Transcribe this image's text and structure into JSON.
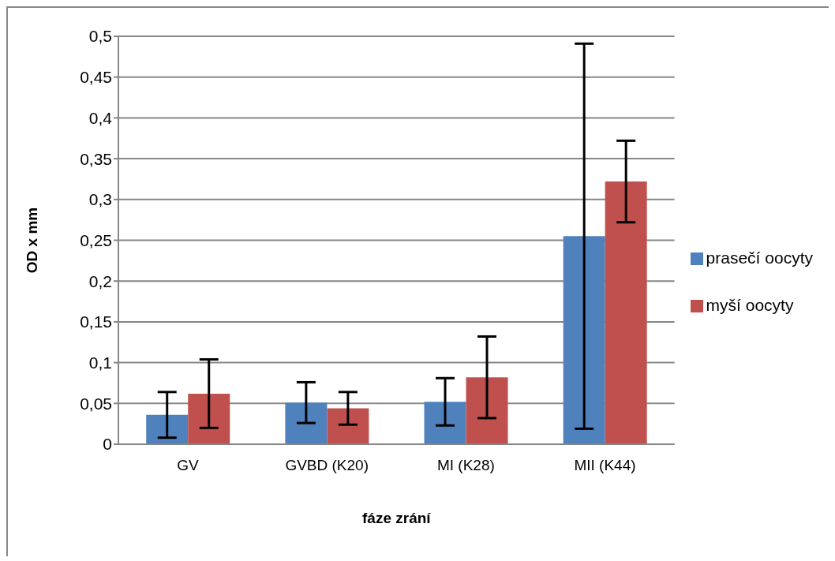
{
  "chart_data": {
    "type": "bar",
    "xlabel": "fáze zrání",
    "ylabel": "OD x mm",
    "categories": [
      "GV",
      "GVBD (K20)",
      "MI (K28)",
      "MII (K44)"
    ],
    "series": [
      {
        "name": "prasečí oocyty",
        "color": "#4f81bd",
        "values": [
          0.036,
          0.051,
          0.052,
          0.255
        ],
        "errors": [
          0.028,
          0.025,
          0.029,
          0.236
        ]
      },
      {
        "name": "myší oocyty",
        "color": "#c0504d",
        "values": [
          0.062,
          0.044,
          0.082,
          0.322
        ],
        "errors": [
          0.042,
          0.02,
          0.05,
          0.05
        ]
      }
    ],
    "ylim": [
      0,
      0.5
    ],
    "yticks": [
      0,
      {
        "value": 0.05,
        "label": "0,05"
      },
      {
        "value": 0.1,
        "label": "0,1"
      },
      {
        "value": 0.15,
        "label": "0,15"
      },
      {
        "value": 0.2,
        "label": "0,2"
      },
      {
        "value": 0.25,
        "label": "0,25"
      },
      {
        "value": 0.3,
        "label": "0,3"
      },
      {
        "value": 0.35,
        "label": "0,35"
      },
      {
        "value": 0.4,
        "label": "0,4"
      },
      {
        "value": 0.45,
        "label": "0,45"
      },
      {
        "value": 0.5,
        "label": "0,5"
      }
    ],
    "grid": "y",
    "legend": "right"
  }
}
